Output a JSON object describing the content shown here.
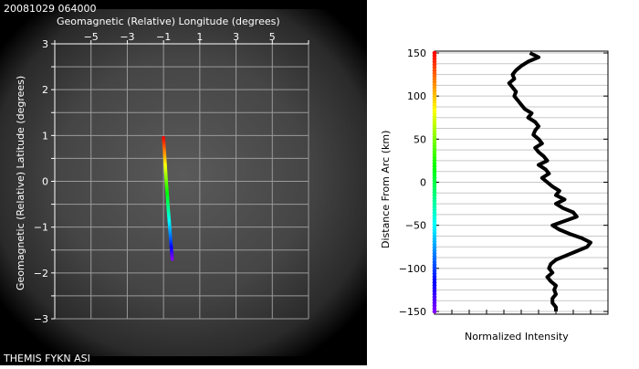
{
  "header": {
    "timestamp": "20081029 064000"
  },
  "footer": {
    "source": "THEMIS FYKN ASI"
  },
  "chart_data": [
    {
      "type": "line",
      "xlabel": "Geomagnetic (Relative) Longitude (degrees)",
      "ylabel": "Geomagnetic (Relative) Latitude (degrees)",
      "xlim": [
        -7,
        7
      ],
      "ylim": [
        -3,
        3
      ],
      "xticks": [
        "−5",
        "−3",
        "−1",
        "1",
        "3",
        "5"
      ],
      "yticks": [
        "3",
        "2",
        "1",
        "0",
        "−1",
        "−2",
        "−3"
      ],
      "grid": true,
      "arc": {
        "x": [
          -1.0,
          -0.96,
          -0.92,
          -0.88,
          -0.84,
          -0.79,
          -0.75,
          -0.7,
          -0.65,
          -0.6,
          -0.56,
          -0.52
        ],
        "y": [
          0.95,
          0.7,
          0.45,
          0.2,
          -0.05,
          -0.3,
          -0.55,
          -0.8,
          -1.05,
          -1.3,
          -1.5,
          -1.7
        ],
        "color_scale": "distance from arc, -150 (violet) to 150 (red) km"
      }
    },
    {
      "type": "line",
      "xlabel": "Normalized Intensity",
      "ylabel": "Distance From Arc (km)",
      "ylim": [
        -150,
        150
      ],
      "yticks": [
        "150",
        "100",
        "50",
        "0",
        "−50",
        "−100",
        "−150"
      ],
      "xlim": [
        0,
        1
      ],
      "grid": true,
      "series": [
        {
          "y": [
            150,
            145,
            140,
            135,
            130,
            125,
            120,
            115,
            110,
            105,
            100,
            95,
            90,
            85,
            80,
            75,
            70,
            65,
            60,
            55,
            50,
            45,
            40,
            35,
            30,
            25,
            20,
            15,
            10,
            5,
            0,
            -5,
            -10,
            -15,
            -20,
            -25,
            -30,
            -35,
            -40,
            -45,
            -50,
            -55,
            -60,
            -65,
            -70,
            -75,
            -80,
            -85,
            -90,
            -95,
            -100,
            -105,
            -110,
            -115,
            -120,
            -125,
            -130,
            -135,
            -140,
            -145,
            -150
          ],
          "x": [
            0.55,
            0.6,
            0.54,
            0.5,
            0.47,
            0.45,
            0.46,
            0.43,
            0.45,
            0.47,
            0.46,
            0.48,
            0.5,
            0.52,
            0.56,
            0.54,
            0.58,
            0.6,
            0.58,
            0.57,
            0.6,
            0.62,
            0.58,
            0.6,
            0.63,
            0.65,
            0.6,
            0.64,
            0.66,
            0.62,
            0.65,
            0.68,
            0.72,
            0.7,
            0.75,
            0.7,
            0.74,
            0.8,
            0.82,
            0.75,
            0.68,
            0.72,
            0.78,
            0.85,
            0.9,
            0.88,
            0.82,
            0.76,
            0.7,
            0.67,
            0.66,
            0.68,
            0.65,
            0.67,
            0.7,
            0.69,
            0.7,
            0.68,
            0.68,
            0.7,
            0.7
          ]
        }
      ]
    }
  ]
}
